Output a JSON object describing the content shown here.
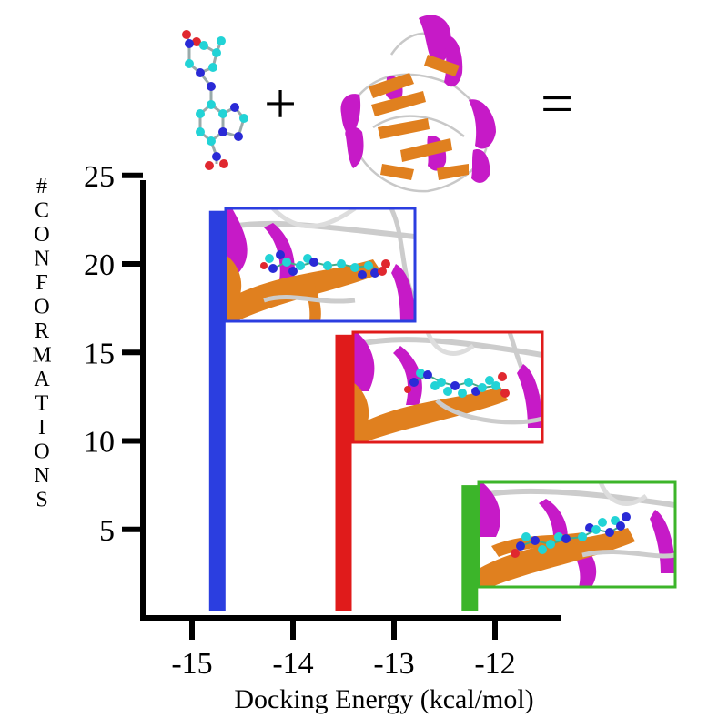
{
  "equation": {
    "plus": "+",
    "equals": "="
  },
  "chart_data": {
    "type": "bar",
    "x": [
      -14.75,
      -13.5,
      -12.25
    ],
    "values": [
      23,
      16,
      7.5
    ],
    "colors": [
      "#2b3ee0",
      "#e01b1b",
      "#3cb52a"
    ],
    "xlabel": "Docking Energy (kcal/mol)",
    "ylabel": "# CONFORMATIONS",
    "xticks": [
      -15,
      -14,
      -13,
      -12
    ],
    "yticks": [
      5,
      10,
      15,
      20,
      25
    ],
    "xlim": [
      -15.5,
      -11.2
    ],
    "ylim": [
      0,
      25
    ]
  },
  "colors": {
    "ligand_carbon": "#22d3d6",
    "ligand_nitrogen": "#2a2ad6",
    "ligand_oxygen": "#e0282f",
    "helix": "#c61ac7",
    "sheet": "#e0801f",
    "loop": "#c8c8c8"
  }
}
